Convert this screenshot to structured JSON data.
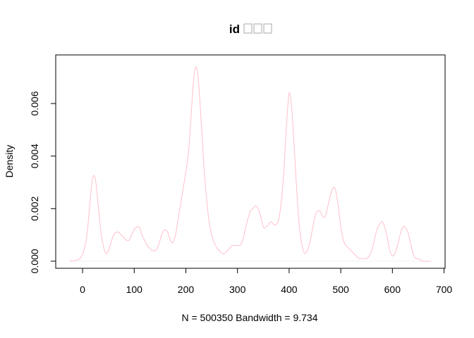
{
  "chart_data": {
    "type": "area",
    "title": "id",
    "title_glyph_count": 3,
    "xlabel": "N = 500350   Bandwidth = 9.734",
    "ylabel": "Density",
    "xlim": [
      -52,
      702
    ],
    "ylim": [
      -0.00027,
      0.00785
    ],
    "x_ticks": [
      0,
      100,
      200,
      300,
      400,
      500,
      600,
      700
    ],
    "y_ticks": [
      0.0,
      0.002,
      0.004,
      0.006
    ],
    "x_tick_labels": [
      "0",
      "100",
      "200",
      "300",
      "400",
      "500",
      "600",
      "700"
    ],
    "y_tick_labels": [
      "0.000",
      "0.002",
      "0.004",
      "0.006"
    ],
    "grid": false,
    "legend": "none",
    "line_color": "#ffc0cb",
    "zero_line_color": "#f0f0f0",
    "series": [
      {
        "x": [
          -25,
          -5,
          5,
          10,
          15,
          20,
          25,
          30,
          35,
          40,
          45,
          50,
          55,
          60,
          65,
          70,
          75,
          80,
          85,
          90,
          95,
          100,
          105,
          110,
          115,
          120,
          125,
          130,
          135,
          140,
          145,
          150,
          155,
          160,
          165,
          170,
          175,
          180,
          185,
          190,
          195,
          200,
          205,
          210,
          215,
          220,
          225,
          230,
          235,
          240,
          245,
          250,
          255,
          260,
          265,
          270,
          275,
          280,
          285,
          290,
          295,
          300,
          305,
          310,
          315,
          320,
          325,
          330,
          335,
          340,
          345,
          350,
          355,
          360,
          365,
          370,
          375,
          380,
          385,
          390,
          395,
          400,
          405,
          410,
          415,
          420,
          425,
          430,
          435,
          440,
          445,
          450,
          455,
          460,
          465,
          470,
          475,
          480,
          485,
          490,
          495,
          500,
          505,
          510,
          515,
          520,
          525,
          530,
          535,
          540,
          545,
          550,
          555,
          560,
          565,
          570,
          575,
          580,
          585,
          590,
          595,
          600,
          605,
          610,
          615,
          620,
          625,
          630,
          635,
          640,
          645,
          650,
          660,
          675
        ],
        "y": [
          0.0,
          0.0001,
          0.0006,
          0.0013,
          0.0024,
          0.0032,
          0.0031,
          0.0022,
          0.0012,
          0.0006,
          0.0003,
          0.0004,
          0.0007,
          0.001,
          0.0011,
          0.0011,
          0.001,
          0.0009,
          0.0008,
          0.0008,
          0.001,
          0.0012,
          0.0013,
          0.0013,
          0.001,
          0.0008,
          0.0006,
          0.0005,
          0.0004,
          0.0004,
          0.0005,
          0.0008,
          0.0011,
          0.0012,
          0.0011,
          0.0008,
          0.0007,
          0.001,
          0.0016,
          0.0022,
          0.0028,
          0.0034,
          0.0041,
          0.0055,
          0.0069,
          0.0074,
          0.0067,
          0.0052,
          0.0036,
          0.0024,
          0.0015,
          0.001,
          0.0007,
          0.0005,
          0.0004,
          0.0003,
          0.0003,
          0.0004,
          0.0005,
          0.0006,
          0.0006,
          0.0006,
          0.0006,
          0.0008,
          0.0012,
          0.0016,
          0.0019,
          0.002,
          0.0021,
          0.002,
          0.0017,
          0.0013,
          0.0013,
          0.0014,
          0.0015,
          0.0014,
          0.0014,
          0.0016,
          0.0023,
          0.0035,
          0.0052,
          0.0064,
          0.0058,
          0.0043,
          0.0026,
          0.0013,
          0.0006,
          0.0003,
          0.0004,
          0.0007,
          0.0012,
          0.0017,
          0.0019,
          0.0019,
          0.0017,
          0.0017,
          0.0021,
          0.0025,
          0.0028,
          0.0027,
          0.0021,
          0.0013,
          0.0008,
          0.0006,
          0.0005,
          0.0004,
          0.0003,
          0.0002,
          0.0001,
          0.0001,
          0.0001,
          0.0001,
          0.0002,
          0.0004,
          0.0008,
          0.0012,
          0.0014,
          0.0015,
          0.0013,
          0.0009,
          0.0004,
          0.0002,
          0.0003,
          0.0006,
          0.001,
          0.0013,
          0.0013,
          0.0011,
          0.0007,
          0.0003,
          0.0001,
          0.0001,
          0.0,
          0.0
        ]
      }
    ]
  }
}
